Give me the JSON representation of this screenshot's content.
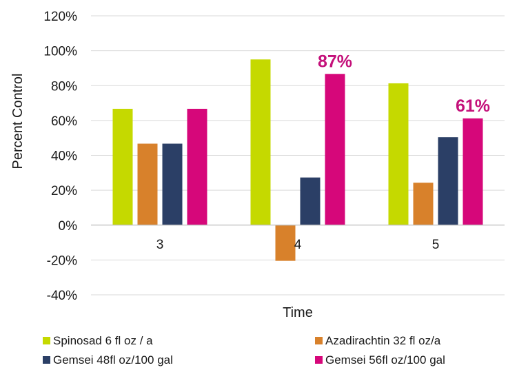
{
  "chart_data": {
    "type": "bar",
    "xlabel": "Time",
    "ylabel": "Percent Control",
    "categories": [
      "3",
      "4",
      "5"
    ],
    "ylim": [
      -40,
      120
    ],
    "yticks": [
      "-40%",
      "-20%",
      "0%",
      "20%",
      "40%",
      "60%",
      "80%",
      "100%",
      "120%"
    ],
    "grid": true,
    "legend_position": "bottom",
    "series": [
      {
        "name": "Spinosad 6 fl oz / a",
        "color": "#c5d900",
        "values": [
          66.7,
          95,
          81.3
        ]
      },
      {
        "name": "Azadirachtin 32 fl oz/a",
        "color": "#d8812b",
        "values": [
          46.7,
          -20.5,
          24.3
        ]
      },
      {
        "name": "Gemsei 48fl oz/100 gal",
        "color": "#2b3f66",
        "values": [
          46.7,
          27.3,
          50.4
        ]
      },
      {
        "name": "Gemsei 56fl oz/100 gal",
        "color": "#d6077a",
        "values": [
          66.7,
          86.7,
          61.2
        ]
      }
    ],
    "annotations": [
      {
        "text": "87%",
        "series": 3,
        "category": 1
      },
      {
        "text": "61%",
        "series": 3,
        "category": 2
      }
    ],
    "annotation_color": "#c4107a"
  }
}
